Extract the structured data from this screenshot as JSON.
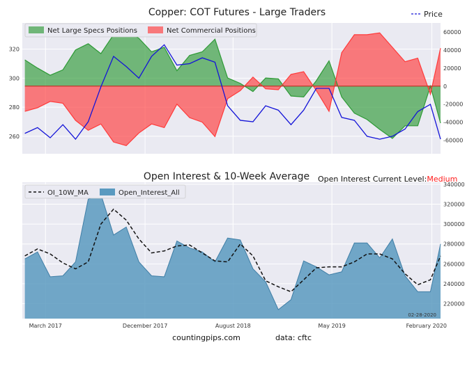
{
  "colors": {
    "long": "#2e9a36",
    "short": "#ff3a3a",
    "price": "#1414d8",
    "oi": "#5a9ac0",
    "ma": "#111111",
    "medium": "#ff1a1a",
    "panel_bg": "#eaeaf2",
    "grid": "#ffffff"
  },
  "chart_data": [
    {
      "type": "area",
      "title": "Copper: COT Futures - Large Traders",
      "price_legend": "Price",
      "series_names": [
        "Net Large Specs Positions",
        "Net Commercial Positions"
      ],
      "x_domain": [
        "2016-12-27",
        "2020-02-25"
      ],
      "ylim_left": [
        248,
        338
      ],
      "ylim_right": [
        -75000,
        70000
      ],
      "left_ticks": [
        "260",
        "280",
        "300",
        "320"
      ],
      "right_ticks": [
        "-60000",
        "-40000",
        "-20000",
        "0",
        "20000",
        "40000",
        "60000"
      ],
      "x_ticks": [
        {
          "x": "2017-03-01",
          "label": "March 2017"
        },
        {
          "x": "2017-12-01",
          "label": "December 2017"
        },
        {
          "x": "2018-08-01",
          "label": "August 2018"
        },
        {
          "x": "2019-05-01",
          "label": "May 2019"
        },
        {
          "x": "2020-02-01",
          "label": "February 2020"
        }
      ],
      "x": [
        "2017-01-03",
        "2017-02-07",
        "2017-03-14",
        "2017-04-18",
        "2017-05-23",
        "2017-06-27",
        "2017-08-01",
        "2017-09-05",
        "2017-10-10",
        "2017-11-14",
        "2017-12-19",
        "2018-01-23",
        "2018-02-27",
        "2018-04-03",
        "2018-05-08",
        "2018-06-12",
        "2018-07-17",
        "2018-08-21",
        "2018-09-25",
        "2018-10-30",
        "2018-12-04",
        "2019-01-08",
        "2019-02-12",
        "2019-03-19",
        "2019-04-23",
        "2019-05-28",
        "2019-07-02",
        "2019-08-06",
        "2019-09-10",
        "2019-10-15",
        "2019-11-19",
        "2019-12-24",
        "2020-01-28",
        "2020-02-25"
      ],
      "specs": [
        29000,
        20000,
        12000,
        18000,
        40000,
        47000,
        36000,
        57000,
        62000,
        53000,
        38000,
        43000,
        17000,
        34000,
        38000,
        52000,
        9000,
        3000,
        -6000,
        9000,
        8000,
        -11000,
        -12000,
        6000,
        28000,
        -12000,
        -30000,
        -37000,
        -48000,
        -58000,
        -44000,
        -44000,
        0,
        -41000
      ],
      "commercial": [
        -28000,
        -24000,
        -17000,
        -19000,
        -38000,
        -49000,
        -42000,
        -62000,
        -66000,
        -52000,
        -42000,
        -46000,
        -20000,
        -35000,
        -40000,
        -56000,
        -14000,
        -5000,
        10000,
        -3000,
        -4000,
        13000,
        16000,
        -5000,
        -28000,
        37000,
        57000,
        57000,
        59000,
        43000,
        27000,
        31000,
        -9000,
        42000
      ],
      "price": [
        262,
        266,
        259,
        268,
        258,
        270,
        294,
        315,
        308,
        300,
        315,
        323,
        309,
        310,
        314,
        311,
        281,
        271,
        270,
        281,
        278,
        268,
        278,
        293,
        293,
        273,
        271,
        260,
        258,
        260,
        265,
        277,
        282,
        258
      ]
    },
    {
      "type": "area",
      "title": "Open Interest & 10-Week Average",
      "series_names": [
        "OI_10W_MA",
        "Open_Interest_All"
      ],
      "subtitle_prefix": "Open Interest Current Level:",
      "subtitle_value": "Medium",
      "date_label": "02-28-2020",
      "x_domain": [
        "2016-12-27",
        "2020-02-25"
      ],
      "ylim": [
        205000,
        342000
      ],
      "y_ticks": [
        "220000",
        "240000",
        "260000",
        "280000",
        "300000",
        "320000",
        "340000"
      ],
      "x": [
        "2017-01-03",
        "2017-02-07",
        "2017-03-14",
        "2017-04-18",
        "2017-05-23",
        "2017-06-27",
        "2017-08-01",
        "2017-09-05",
        "2017-10-10",
        "2017-11-14",
        "2017-12-19",
        "2018-01-23",
        "2018-02-27",
        "2018-04-03",
        "2018-05-08",
        "2018-06-12",
        "2018-07-17",
        "2018-08-21",
        "2018-09-25",
        "2018-10-30",
        "2018-12-04",
        "2019-01-08",
        "2019-02-12",
        "2019-03-19",
        "2019-04-23",
        "2019-05-28",
        "2019-07-02",
        "2019-08-06",
        "2019-09-10",
        "2019-10-15",
        "2019-11-19",
        "2019-12-24",
        "2020-01-28",
        "2020-02-25"
      ],
      "oi": [
        265000,
        272000,
        247000,
        248000,
        262000,
        325000,
        330000,
        289000,
        297000,
        262000,
        248000,
        247000,
        283000,
        276000,
        272000,
        262000,
        286000,
        284000,
        255000,
        242000,
        214000,
        224000,
        263000,
        257000,
        249000,
        252000,
        281000,
        281000,
        266000,
        285000,
        248000,
        232000,
        232000,
        280000
      ],
      "ma": [
        268000,
        275000,
        270000,
        261000,
        255000,
        262000,
        300000,
        315000,
        304000,
        285000,
        271000,
        273000,
        278000,
        279000,
        271000,
        263000,
        262000,
        280000,
        268000,
        243000,
        237000,
        232000,
        244000,
        256000,
        257000,
        257000,
        262000,
        270000,
        270000,
        265000,
        250000,
        239000,
        244000,
        268000
      ]
    }
  ],
  "footer": {
    "source": "countingpips.com",
    "data_label": "data: cftc"
  }
}
